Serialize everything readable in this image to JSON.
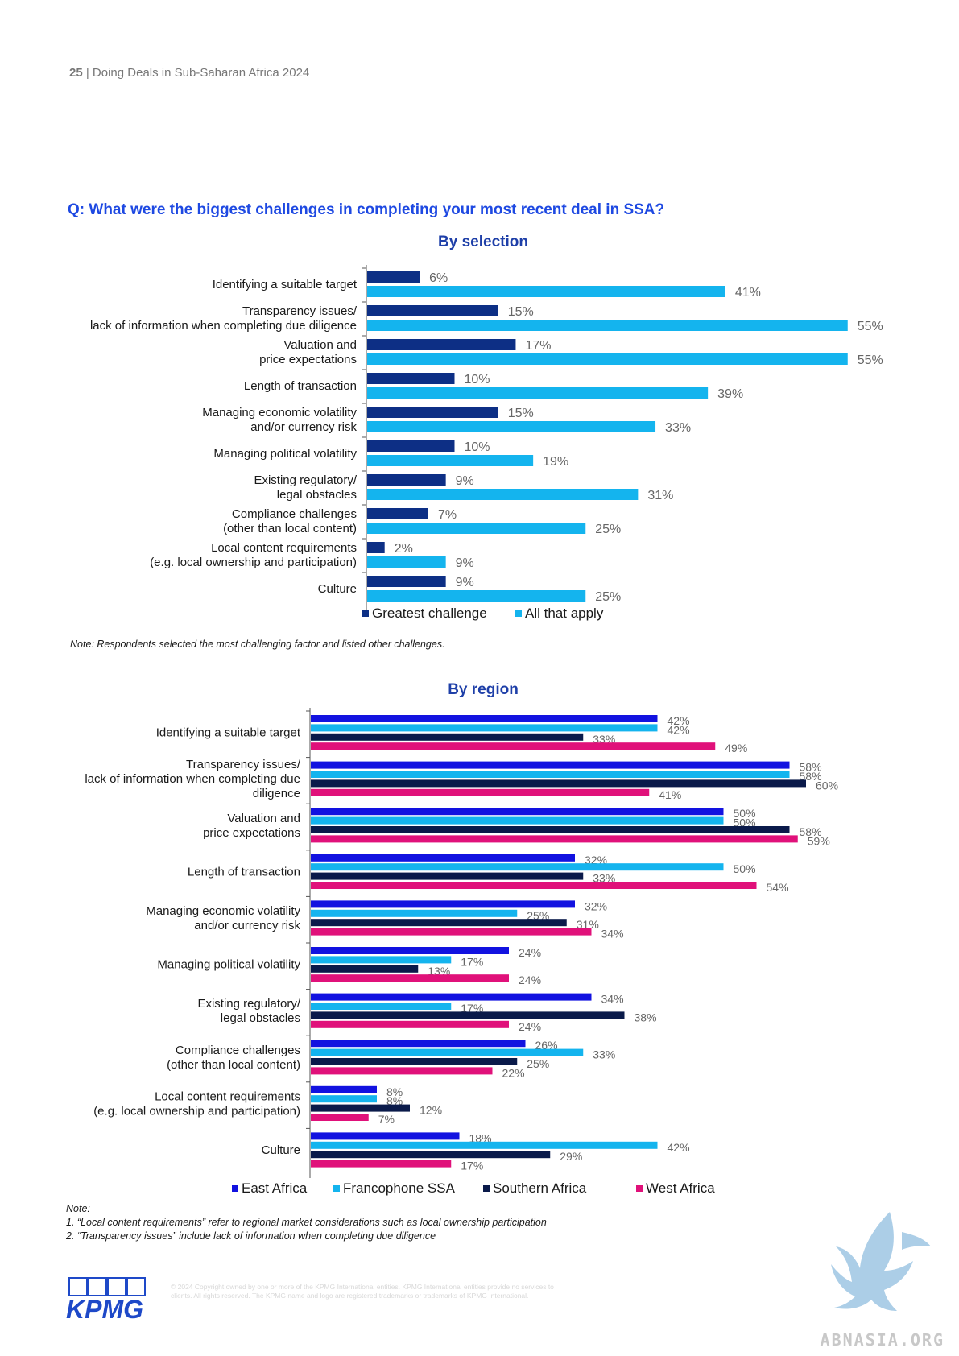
{
  "header": {
    "page_number": "25",
    "separator": " | ",
    "doc_title": "Doing Deals in Sub-Saharan Africa 2024"
  },
  "question": "Q: What were the biggest challenges in completing your most recent deal in SSA?",
  "colors": {
    "greatest": "#0d2f85",
    "all_apply": "#14b4ee",
    "east": "#1212e0",
    "franco": "#14b4ee",
    "southern": "#0a1a4a",
    "west": "#e0117a"
  },
  "chart_data": [
    {
      "type": "bar",
      "orientation": "horizontal",
      "title": "By selection",
      "categories": [
        [
          "Identifying a suitable target"
        ],
        [
          "Transparency issues/",
          "lack of information when completing due diligence"
        ],
        [
          "Valuation and",
          "price expectations"
        ],
        [
          "Length of transaction"
        ],
        [
          "Managing economic volatility",
          "and/or currency risk"
        ],
        [
          "Managing political volatility"
        ],
        [
          "Existing regulatory/",
          "legal obstacles"
        ],
        [
          "Compliance challenges",
          "(other than local content)"
        ],
        [
          "Local content requirements",
          "(e.g. local ownership and participation)"
        ],
        [
          "Culture"
        ]
      ],
      "series": [
        {
          "name": "Greatest challenge",
          "values": [
            6,
            15,
            17,
            10,
            15,
            10,
            9,
            7,
            2,
            9
          ],
          "labels": [
            "6%",
            "15%",
            "17%",
            "10%",
            "15%",
            "10%",
            "9%",
            "7%",
            "2%",
            "9%"
          ]
        },
        {
          "name": "All that apply",
          "values": [
            41,
            55,
            55,
            39,
            33,
            19,
            31,
            25,
            9,
            25
          ],
          "labels": [
            "41%",
            "55%",
            "55%",
            "39%",
            "33%",
            "19%",
            "31%",
            "25%",
            "9%",
            "25%"
          ]
        }
      ],
      "legend_position": "bottom",
      "note": "Note: Respondents selected the most challenging factor and listed other challenges."
    },
    {
      "type": "bar",
      "orientation": "horizontal",
      "title": "By region",
      "categories": [
        [
          "Identifying a suitable target"
        ],
        [
          "Transparency issues/",
          "lack of information when completing due",
          "diligence"
        ],
        [
          "Valuation and",
          "price expectations"
        ],
        [
          "Length of transaction"
        ],
        [
          "Managing economic volatility",
          "and/or currency risk"
        ],
        [
          "Managing political volatility"
        ],
        [
          "Existing regulatory/",
          "legal obstacles"
        ],
        [
          "Compliance challenges",
          "(other than local content)"
        ],
        [
          "Local content requirements",
          "(e.g. local ownership and participation)"
        ],
        [
          "Culture"
        ]
      ],
      "series": [
        {
          "name": "East Africa",
          "values": [
            42,
            58,
            50,
            32,
            32,
            24,
            34,
            26,
            8,
            18
          ],
          "labels": [
            "42%",
            "58%",
            "50%",
            "32%",
            "32%",
            "24%",
            "34%",
            "26%",
            "8%",
            "18%"
          ]
        },
        {
          "name": "Francophone SSA",
          "values": [
            42,
            58,
            50,
            50,
            25,
            17,
            17,
            33,
            8,
            42
          ],
          "labels": [
            "42%",
            "58%",
            "50%",
            "50%",
            "25%",
            "17%",
            "17%",
            "33%",
            "8%",
            "42%"
          ]
        },
        {
          "name": "Southern Africa",
          "values": [
            33,
            60,
            58,
            33,
            31,
            13,
            38,
            25,
            12,
            29
          ],
          "labels": [
            "33%",
            "60%",
            "58%",
            "33%",
            "31%",
            "13%",
            "38%",
            "25%",
            "12%",
            "29%"
          ]
        },
        {
          "name": "West Africa",
          "values": [
            49,
            41,
            59,
            54,
            34,
            24,
            24,
            22,
            7,
            17
          ],
          "labels": [
            "49%",
            "41%",
            "59%",
            "54%",
            "34%",
            "24%",
            "24%",
            "22%",
            "7%",
            "17%"
          ]
        }
      ],
      "legend_position": "bottom",
      "note_title": "Note:",
      "notes": [
        "1. “Local content requirements” refer to regional market considerations such as local ownership participation",
        "2. “Transparency issues” include lack of information when completing due diligence"
      ]
    }
  ],
  "footer": {
    "logo": "KPMG",
    "copyright": "© 2024 Copyright owned by one or more of the KPMG International entities. KPMG International entities provide no services to clients. All rights reserved. The KPMG name and logo are registered trademarks or trademarks of KPMG International.",
    "watermark": "ABNASIA.ORG"
  }
}
